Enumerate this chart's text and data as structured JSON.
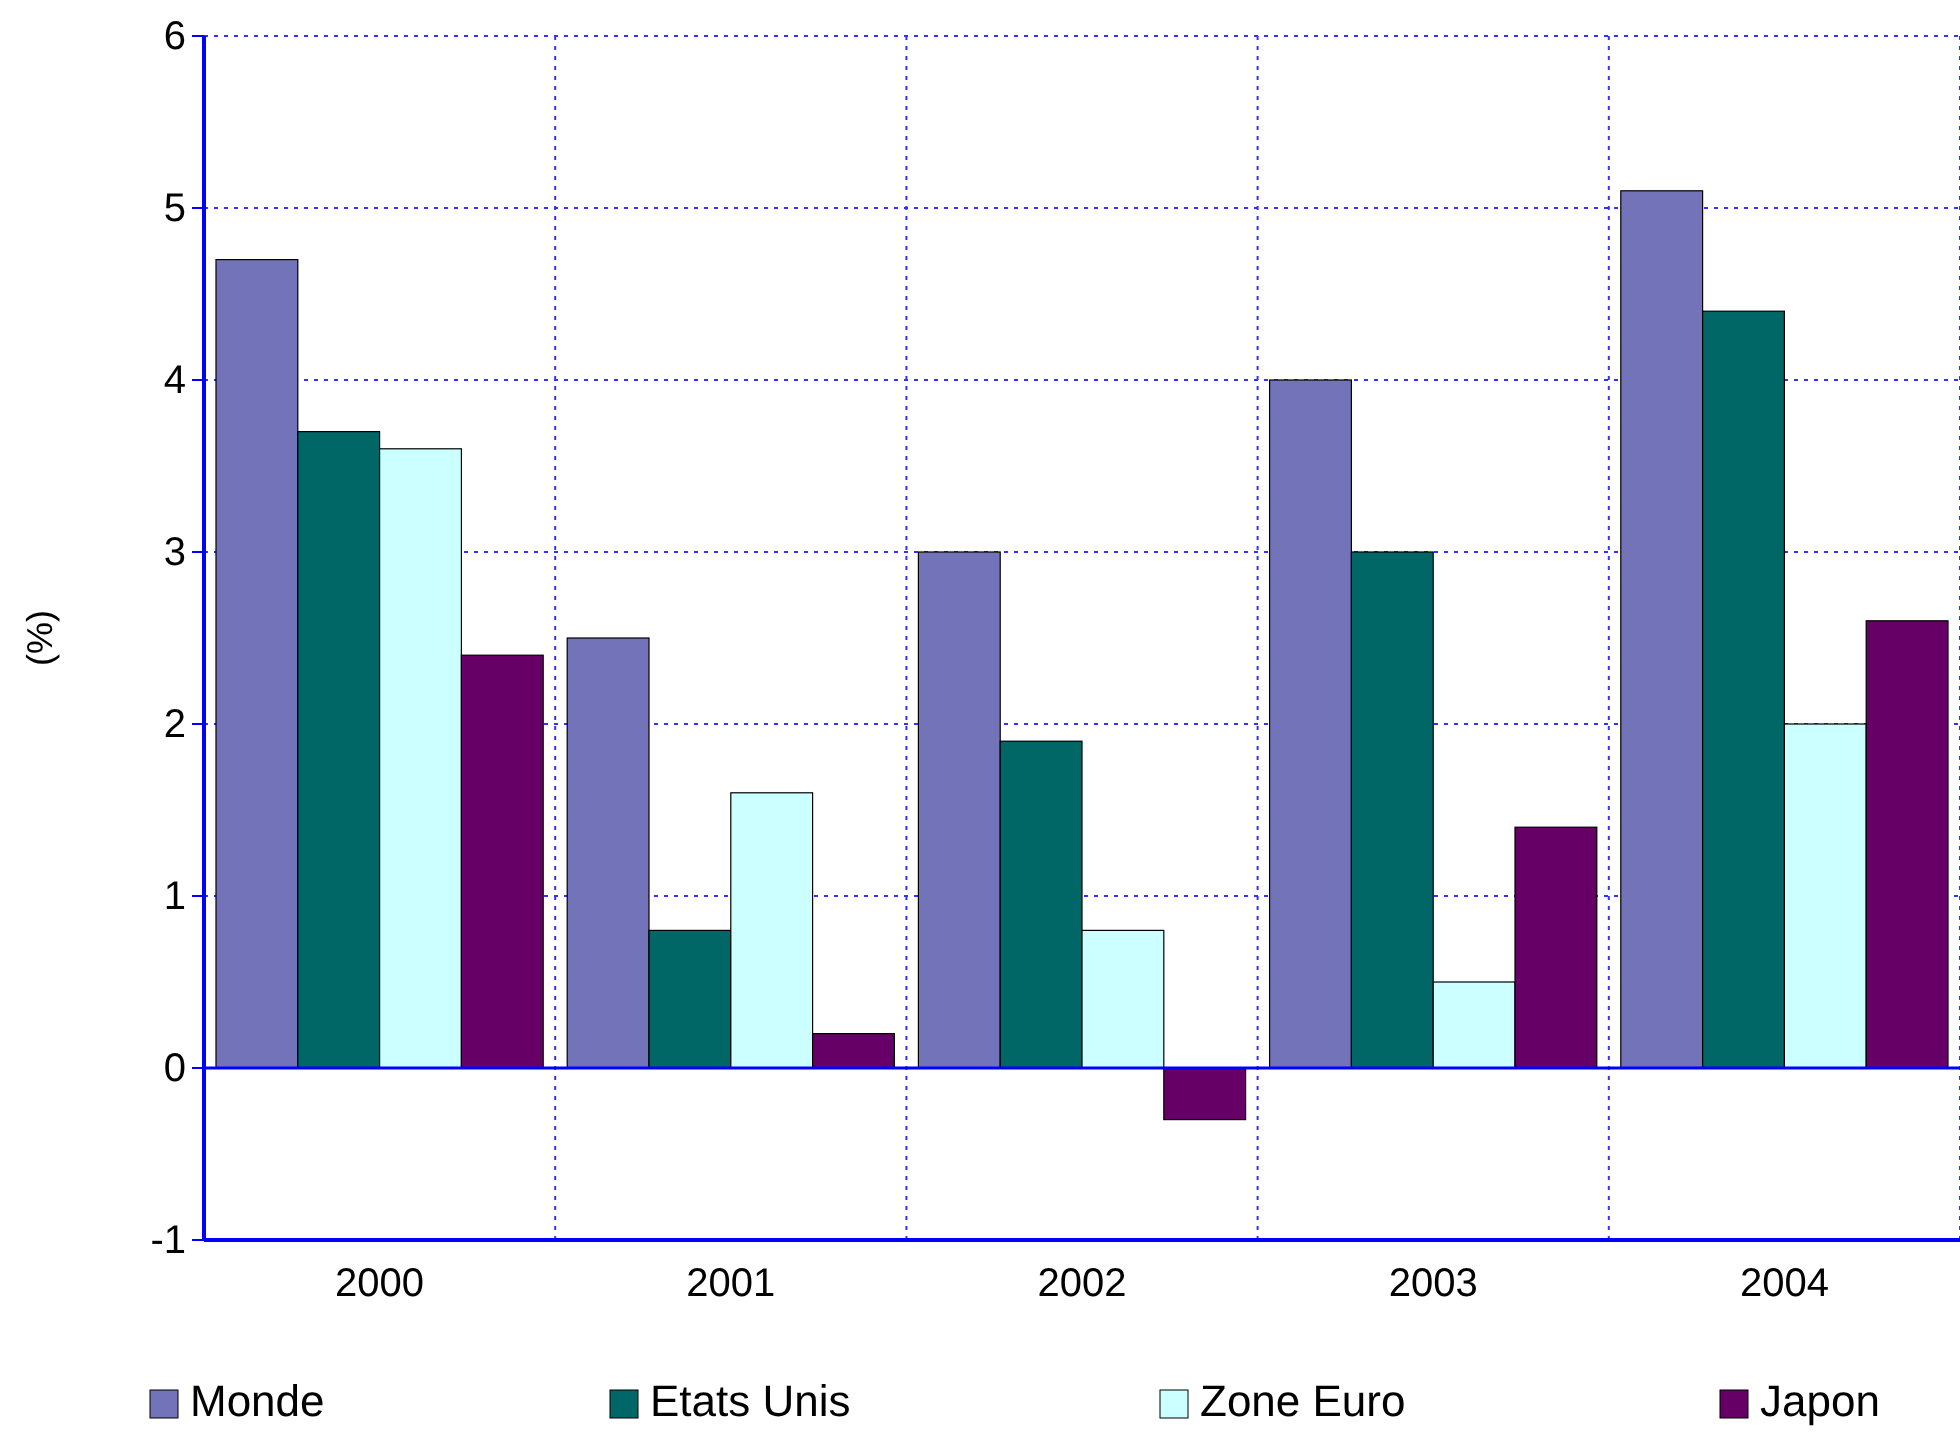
{
  "chart_data": {
    "type": "bar",
    "ylabel": "(%)",
    "categories": [
      "2000",
      "2001",
      "2002",
      "2003",
      "2004"
    ],
    "series": [
      {
        "name": "Monde",
        "color": "#7373b9",
        "values": [
          4.7,
          2.5,
          3.0,
          4.0,
          5.1
        ]
      },
      {
        "name": "Etats Unis",
        "color": "#006666",
        "values": [
          3.7,
          0.8,
          1.9,
          3.0,
          4.4
        ]
      },
      {
        "name": "Zone Euro",
        "color": "#ccffff",
        "values": [
          3.6,
          1.6,
          0.8,
          0.5,
          2.0
        ]
      },
      {
        "name": "Japon",
        "color": "#660066",
        "values": [
          2.4,
          0.2,
          -0.3,
          1.4,
          2.6
        ]
      }
    ],
    "ylim": [
      -1,
      6
    ],
    "yticks": [
      -1,
      0,
      1,
      2,
      3,
      4,
      5,
      6
    ],
    "grid": true,
    "legend": "bottom",
    "ref_lines": [
      {
        "axis": "y",
        "value": 0,
        "color": "#0000ff"
      }
    ]
  }
}
